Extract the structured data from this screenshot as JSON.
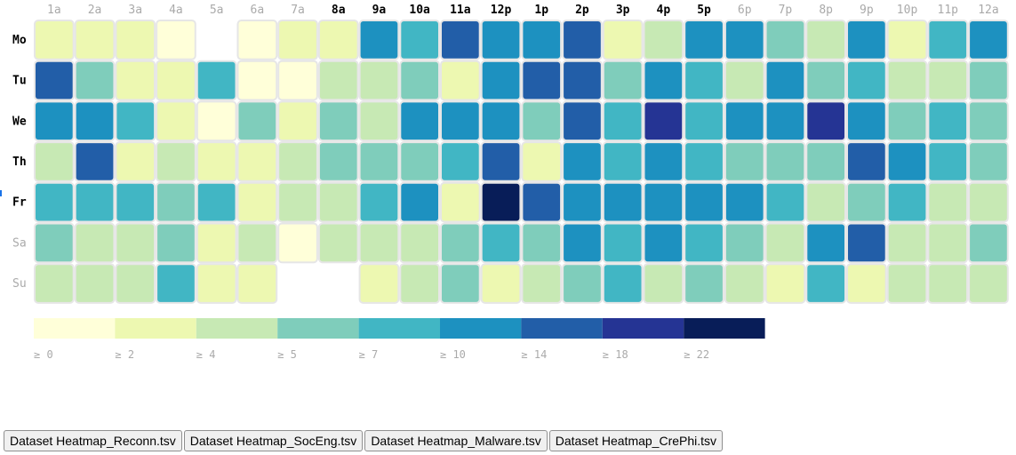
{
  "chart_data": {
    "type": "heatmap",
    "x_labels": [
      "1a",
      "2a",
      "3a",
      "4a",
      "5a",
      "6a",
      "7a",
      "8a",
      "9a",
      "10a",
      "11a",
      "12p",
      "1p",
      "2p",
      "3p",
      "4p",
      "5p",
      "6p",
      "7p",
      "8p",
      "9p",
      "10p",
      "11p",
      "12a"
    ],
    "x_label_bold": [
      false,
      false,
      false,
      false,
      false,
      false,
      false,
      true,
      true,
      true,
      true,
      true,
      true,
      true,
      true,
      true,
      true,
      false,
      false,
      false,
      false,
      false,
      false,
      false
    ],
    "y_labels": [
      "Mo",
      "Tu",
      "We",
      "Th",
      "Fr",
      "Sa",
      "Su"
    ],
    "y_label_bold": [
      true,
      true,
      true,
      true,
      true,
      false,
      false
    ],
    "values": [
      [
        3,
        3,
        3,
        1,
        null,
        1,
        3,
        3,
        12,
        8,
        15,
        11,
        11,
        15,
        3,
        4,
        11,
        11,
        6,
        4,
        11,
        3,
        8,
        11
      ],
      [
        15,
        6,
        3,
        3,
        8,
        1,
        1,
        4,
        4,
        6,
        3,
        11,
        15,
        15,
        6,
        11,
        8,
        4,
        11,
        6,
        8,
        4,
        4,
        6
      ],
      [
        11,
        11,
        8,
        3,
        1,
        6,
        3,
        6,
        4,
        11,
        11,
        11,
        6,
        15,
        8,
        19,
        8,
        11,
        11,
        19,
        11,
        6,
        8,
        6
      ],
      [
        4,
        15,
        3,
        4,
        3,
        3,
        4,
        6,
        6,
        6,
        8,
        15,
        3,
        11,
        8,
        11,
        8,
        6,
        6,
        6,
        15,
        11,
        8,
        6
      ],
      [
        8,
        8,
        8,
        6,
        8,
        3,
        4,
        4,
        8,
        11,
        3,
        23,
        15,
        11,
        11,
        11,
        11,
        11,
        8,
        4,
        6,
        8,
        4,
        4
      ],
      [
        6,
        4,
        4,
        6,
        3,
        4,
        1,
        4,
        4,
        4,
        6,
        8,
        6,
        11,
        8,
        11,
        8,
        6,
        4,
        11,
        15,
        4,
        4,
        6
      ],
      [
        4,
        4,
        4,
        8,
        3,
        3,
        null,
        null,
        3,
        4,
        6,
        3,
        4,
        6,
        8,
        4,
        6,
        4,
        3,
        8,
        3,
        4,
        4,
        4
      ]
    ],
    "thresholds": [
      0,
      2,
      4,
      5,
      7,
      10,
      14,
      18,
      22
    ],
    "colors": [
      "#ffffd9",
      "#edf8b1",
      "#c7e9b4",
      "#7fcdbb",
      "#41b6c4",
      "#1d91c0",
      "#225ea8",
      "#253494",
      "#081d58"
    ],
    "legend_labels": [
      "≥ 0",
      "≥ 2",
      "≥ 4",
      "≥ 5",
      "≥ 7",
      "≥ 10",
      "≥ 14",
      "≥ 18",
      "≥ 22"
    ]
  },
  "buttons": [
    "Dataset Heatmap_Reconn.tsv",
    "Dataset Heatmap_SocEng.tsv",
    "Dataset Heatmap_Malware.tsv",
    "Dataset Heatmap_CrePhi.tsv"
  ]
}
